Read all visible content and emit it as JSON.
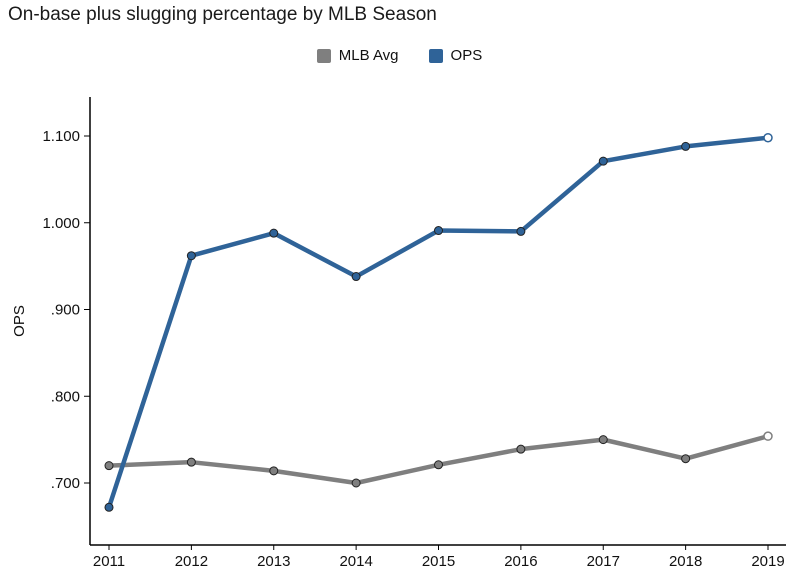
{
  "chart_data": {
    "type": "line",
    "title": "On-base plus slugging percentage by MLB Season",
    "xlabel": "",
    "ylabel": "OPS",
    "categories": [
      "2011",
      "2012",
      "2013",
      "2014",
      "2015",
      "2016",
      "2017",
      "2018",
      "2019"
    ],
    "y_ticks": [
      {
        "value": 0.7,
        "label": ".700"
      },
      {
        "value": 0.8,
        "label": ".800"
      },
      {
        "value": 0.9,
        "label": ".900"
      },
      {
        "value": 1.0,
        "label": "1.000"
      },
      {
        "value": 1.1,
        "label": "1.100"
      }
    ],
    "ylim": [
      0.64,
      1.145
    ],
    "grid": false,
    "legend_position": "top-center",
    "series": [
      {
        "name": "MLB Avg",
        "color": "#7f7f7f",
        "values": [
          0.72,
          0.724,
          0.714,
          0.7,
          0.721,
          0.739,
          0.75,
          0.728,
          0.754
        ]
      },
      {
        "name": "OPS",
        "color": "#2f6398",
        "values": [
          0.672,
          0.962,
          0.988,
          0.938,
          0.991,
          0.99,
          1.071,
          1.088,
          1.098
        ]
      }
    ]
  }
}
